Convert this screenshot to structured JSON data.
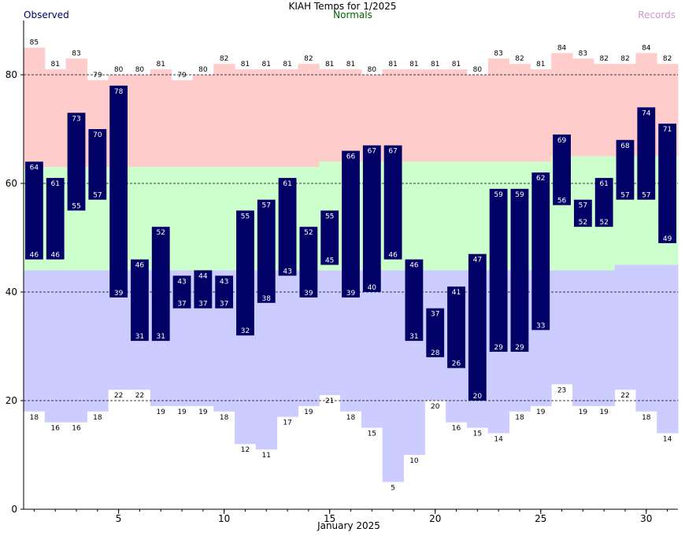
{
  "chart_data": {
    "type": "bar",
    "title": "KIAH Temps for 1/2025",
    "xlabel": "January 2025",
    "ylabel": "",
    "legend": [
      {
        "name": "Observed",
        "color": "#000066",
        "placement": "top-left"
      },
      {
        "name": "Normals",
        "color": "#006600",
        "placement": "top-center"
      },
      {
        "name": "Records",
        "color": "#cc99cc",
        "placement": "top-right"
      }
    ],
    "ylim": [
      0,
      90
    ],
    "yticks": [
      0,
      20,
      40,
      60,
      80
    ],
    "xticks": [
      5,
      10,
      15,
      20,
      25,
      30
    ],
    "days": [
      1,
      2,
      3,
      4,
      5,
      6,
      7,
      8,
      9,
      10,
      11,
      12,
      13,
      14,
      15,
      16,
      17,
      18,
      19,
      20,
      21,
      22,
      23,
      24,
      25,
      26,
      27,
      28,
      29,
      30,
      31
    ],
    "observed_high": [
      64,
      61,
      73,
      70,
      78,
      46,
      52,
      43,
      44,
      43,
      55,
      57,
      61,
      52,
      55,
      66,
      67,
      67,
      46,
      37,
      41,
      47,
      59,
      59,
      62,
      69,
      57,
      61,
      68,
      74,
      71
    ],
    "observed_low": [
      46,
      46,
      55,
      57,
      39,
      31,
      31,
      37,
      37,
      37,
      32,
      38,
      43,
      39,
      45,
      39,
      40,
      46,
      31,
      28,
      26,
      20,
      29,
      29,
      33,
      56,
      52,
      52,
      57,
      57,
      49
    ],
    "record_high": [
      85,
      81,
      83,
      79,
      80,
      80,
      81,
      79,
      80,
      82,
      81,
      81,
      81,
      82,
      81,
      81,
      80,
      81,
      81,
      81,
      81,
      80,
      83,
      82,
      81,
      84,
      83,
      82,
      82,
      84,
      82
    ],
    "record_low": [
      18,
      16,
      16,
      18,
      22,
      22,
      19,
      19,
      19,
      18,
      12,
      11,
      17,
      19,
      21,
      18,
      15,
      5,
      10,
      20,
      16,
      15,
      14,
      18,
      19,
      23,
      19,
      19,
      22,
      18,
      14
    ],
    "normal_high": [
      63,
      63,
      63,
      63,
      63,
      63,
      63,
      63,
      63,
      63,
      63,
      63,
      63,
      63,
      64,
      64,
      64,
      64,
      64,
      64,
      64,
      64,
      64,
      64,
      64,
      65,
      65,
      65,
      65,
      65,
      65
    ],
    "normal_low": [
      44,
      44,
      44,
      44,
      44,
      44,
      44,
      44,
      44,
      44,
      44,
      44,
      44,
      44,
      44,
      44,
      44,
      44,
      44,
      44,
      44,
      44,
      44,
      44,
      44,
      44,
      44,
      44,
      45,
      45,
      45
    ],
    "colors": {
      "observed": "#000066",
      "normal": "#ccffcc",
      "record_high_band": "#ffcccc",
      "record_low_band": "#ccccff",
      "normals_text": "#006600",
      "records_text": "#cc99cc"
    },
    "grid": "dashed at 20,40,60,80"
  }
}
